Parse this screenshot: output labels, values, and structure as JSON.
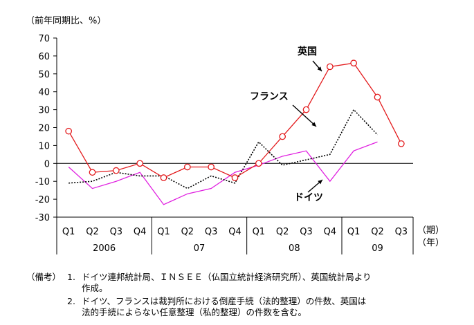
{
  "chart_data": {
    "type": "line",
    "y_unit_label": "（前年同期比、%）",
    "ylim": [
      -30,
      70
    ],
    "yticks": [
      -30,
      -20,
      -10,
      0,
      10,
      20,
      30,
      40,
      50,
      60,
      70
    ],
    "categories": [
      "Q1",
      "Q2",
      "Q3",
      "Q4",
      "Q1",
      "Q2",
      "Q3",
      "Q4",
      "Q1",
      "Q2",
      "Q3",
      "Q4",
      "Q1",
      "Q2",
      "Q3"
    ],
    "years": [
      {
        "label": "2006",
        "start": 0,
        "end": 3
      },
      {
        "label": "07",
        "start": 4,
        "end": 7
      },
      {
        "label": "08",
        "start": 8,
        "end": 11
      },
      {
        "label": "09",
        "start": 12,
        "end": 14
      }
    ],
    "x_unit_label": [
      "（期）",
      "（年）"
    ],
    "series": [
      {
        "name": "英国",
        "color": "#e31a1c",
        "style": "solid-circle",
        "values": [
          18,
          -5,
          -4,
          0,
          -8,
          -2,
          -2,
          -8,
          0,
          15,
          30,
          54,
          56,
          37,
          11
        ]
      },
      {
        "name": "フランス",
        "color": "#000000",
        "style": "dotted",
        "values": [
          -11,
          -10,
          -5,
          -7,
          -7,
          -14,
          -7,
          -11,
          12,
          -1,
          2,
          5,
          30,
          16,
          null
        ]
      },
      {
        "name": "ドイツ",
        "color": "#e020e0",
        "style": "solid",
        "values": [
          -2,
          -14,
          -10,
          -5,
          -23,
          -17,
          -14,
          -5,
          -1,
          4,
          7,
          -10,
          7,
          12,
          null
        ]
      }
    ]
  },
  "notes": {
    "label": "（備考）",
    "items": [
      {
        "num": "1.",
        "lines": [
          "ドイツ連邦統計局、ＩＮＳＥＥ（仏国立統計経済研究所）、英国統計局より",
          "作成。"
        ]
      },
      {
        "num": "2.",
        "lines": [
          "ドイツ、フランスは裁判所における倒産手続（法的整理）の件数、英国は",
          "法的手続によらない任意整理（私的整理）の件数を含む。"
        ]
      }
    ]
  }
}
